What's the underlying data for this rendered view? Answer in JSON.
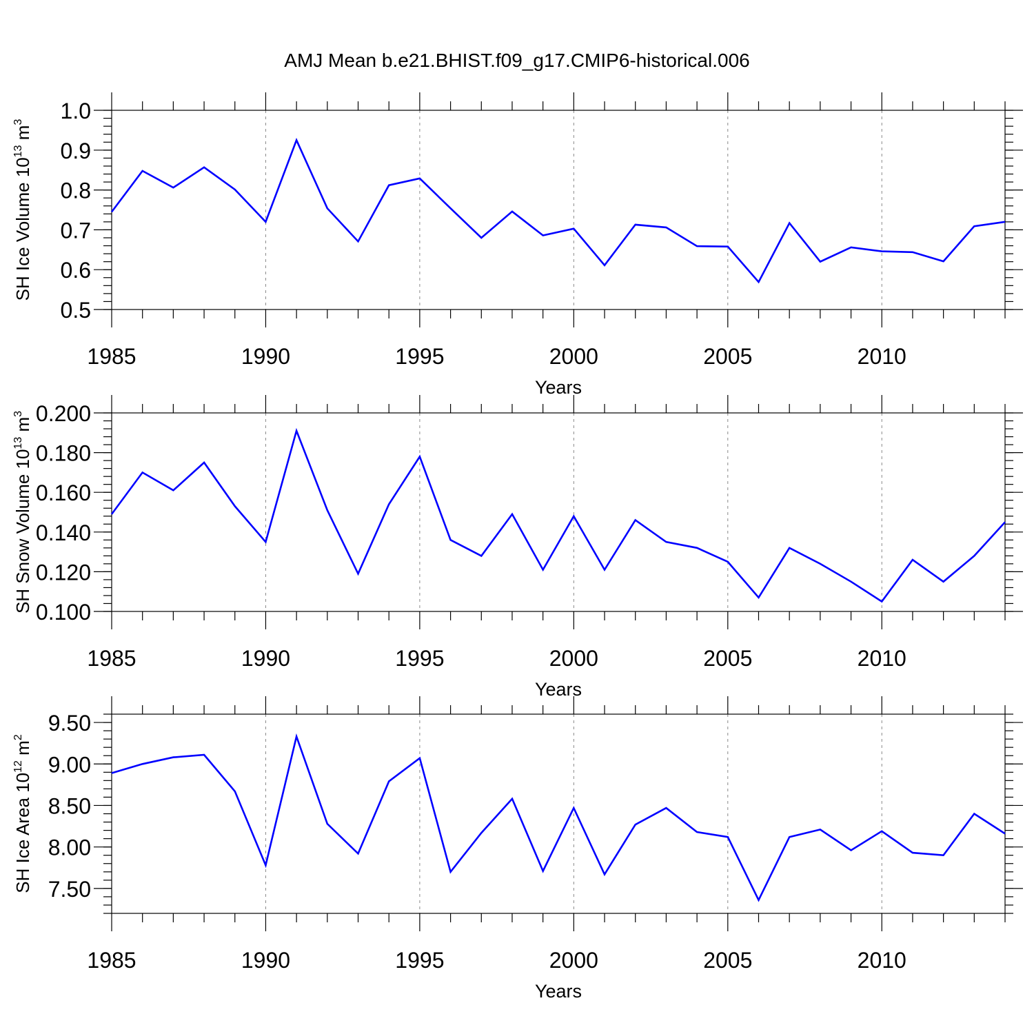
{
  "chart_data": {
    "title": "AMJ Mean b.e21.BHIST.f09_g17.CMIP6-historical.006",
    "type": "line",
    "line_color": "#0000ff",
    "years": [
      1985,
      1986,
      1987,
      1988,
      1989,
      1990,
      1991,
      1992,
      1993,
      1994,
      1995,
      1996,
      1997,
      1998,
      1999,
      2000,
      2001,
      2002,
      2003,
      2004,
      2005,
      2006,
      2007,
      2008,
      2009,
      2010,
      2011,
      2012,
      2013,
      2014
    ],
    "panels": [
      {
        "type": "line",
        "ylabel": "SH Ice Volume 10",
        "ylabel_exp": "13",
        "ylabel_unit": " m",
        "ylabel_unit_exp": "3",
        "xlabel": "Years",
        "ylim": [
          0.5,
          1.0
        ],
        "yticks": [
          0.5,
          0.6,
          0.7,
          0.8,
          0.9,
          1.0
        ],
        "ytick_labels": [
          "0.5",
          "0.6",
          "0.7",
          "0.8",
          "0.9",
          "1.0"
        ],
        "xticks": [
          1985,
          1990,
          1995,
          2000,
          2005,
          2010
        ],
        "xtick_labels": [
          "1985",
          "1990",
          "1995",
          "2000",
          "2005",
          "2010"
        ],
        "values": [
          0.745,
          0.848,
          0.806,
          0.857,
          0.801,
          0.72,
          0.925,
          0.754,
          0.671,
          0.812,
          0.829,
          0.754,
          0.68,
          0.746,
          0.686,
          0.703,
          0.611,
          0.713,
          0.706,
          0.659,
          0.658,
          0.569,
          0.717,
          0.62,
          0.656,
          0.646,
          0.644,
          0.621,
          0.709,
          0.72
        ]
      },
      {
        "type": "line",
        "ylabel": "SH Snow Volume 10",
        "ylabel_exp": "13",
        "ylabel_unit": " m",
        "ylabel_unit_exp": "3",
        "xlabel": "Years",
        "ylim": [
          0.1,
          0.2
        ],
        "yticks": [
          0.1,
          0.12,
          0.14,
          0.16,
          0.18,
          0.2
        ],
        "ytick_labels": [
          "0.100",
          "0.120",
          "0.140",
          "0.160",
          "0.180",
          "0.200"
        ],
        "xticks": [
          1985,
          1990,
          1995,
          2000,
          2005,
          2010
        ],
        "xtick_labels": [
          "1985",
          "1990",
          "1995",
          "2000",
          "2005",
          "2010"
        ],
        "values": [
          0.149,
          0.17,
          0.161,
          0.175,
          0.153,
          0.135,
          0.191,
          0.151,
          0.119,
          0.154,
          0.178,
          0.136,
          0.128,
          0.149,
          0.121,
          0.148,
          0.121,
          0.146,
          0.135,
          0.132,
          0.125,
          0.107,
          0.132,
          0.124,
          0.115,
          0.105,
          0.126,
          0.115,
          0.128,
          0.145
        ]
      },
      {
        "type": "line",
        "ylabel": "SH Ice Area 10",
        "ylabel_exp": "12",
        "ylabel_unit": " m",
        "ylabel_unit_exp": "2",
        "xlabel": "Years",
        "ylim": [
          7.2,
          9.6
        ],
        "yticks": [
          7.5,
          8.0,
          8.5,
          9.0,
          9.5
        ],
        "ytick_labels": [
          "7.50",
          "8.00",
          "8.50",
          "9.00",
          "9.50"
        ],
        "xticks": [
          1985,
          1990,
          1995,
          2000,
          2005,
          2010
        ],
        "xtick_labels": [
          "1985",
          "1990",
          "1995",
          "2000",
          "2005",
          "2010"
        ],
        "values": [
          8.89,
          9.0,
          9.08,
          9.11,
          8.67,
          7.78,
          9.33,
          8.28,
          7.92,
          8.79,
          9.07,
          7.7,
          8.17,
          8.58,
          7.71,
          8.47,
          7.67,
          8.27,
          8.47,
          8.18,
          8.12,
          7.36,
          8.12,
          8.21,
          7.96,
          8.19,
          7.93,
          7.9,
          8.4,
          8.16
        ]
      }
    ]
  }
}
